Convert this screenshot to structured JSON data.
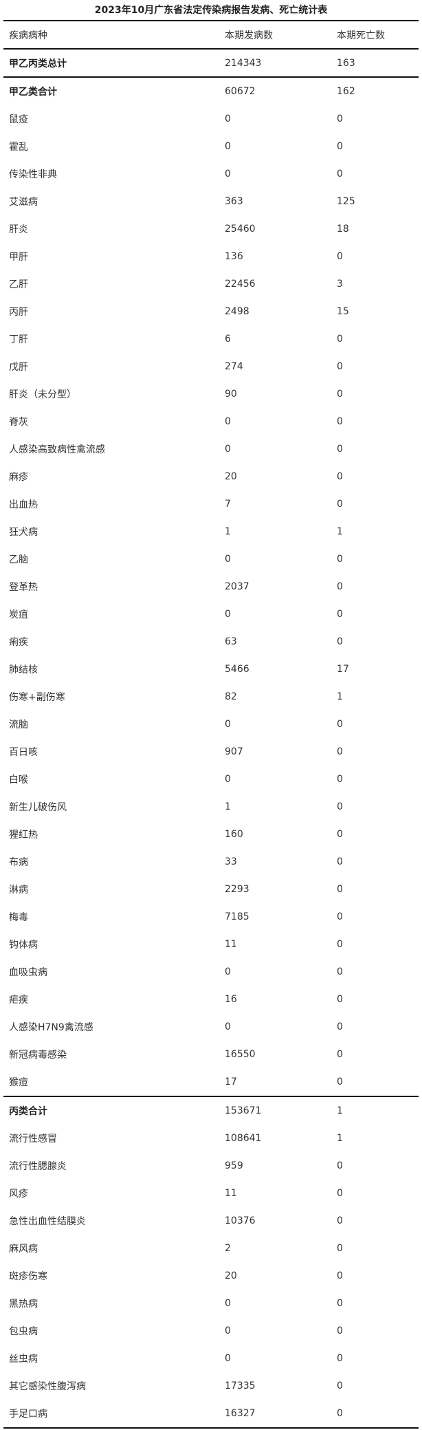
{
  "title": "2023年10月广东省法定传染病报告发病、死亡统计表",
  "columns": [
    "疾病病种",
    "本期发病数",
    "本期死亡数"
  ],
  "rows": [
    {
      "name": "甲乙丙类总计",
      "cases": "214343",
      "deaths": "163",
      "bold": true
    },
    {
      "name": "甲乙类合计",
      "cases": "60672",
      "deaths": "162",
      "bold": true
    },
    {
      "name": "鼠疫",
      "cases": "0",
      "deaths": "0"
    },
    {
      "name": "霍乱",
      "cases": "0",
      "deaths": "0"
    },
    {
      "name": "传染性非典",
      "cases": "0",
      "deaths": "0"
    },
    {
      "name": "艾滋病",
      "cases": "363",
      "deaths": "125"
    },
    {
      "name": "肝炎",
      "cases": "25460",
      "deaths": "18"
    },
    {
      "name": "甲肝",
      "cases": "136",
      "deaths": "0"
    },
    {
      "name": "乙肝",
      "cases": "22456",
      "deaths": "3"
    },
    {
      "name": "丙肝",
      "cases": "2498",
      "deaths": "15"
    },
    {
      "name": "丁肝",
      "cases": "6",
      "deaths": "0"
    },
    {
      "name": "戊肝",
      "cases": "274",
      "deaths": "0"
    },
    {
      "name": "肝炎（未分型）",
      "cases": "90",
      "deaths": "0"
    },
    {
      "name": "脊灰",
      "cases": "0",
      "deaths": "0"
    },
    {
      "name": "人感染高致病性禽流感",
      "cases": "0",
      "deaths": "0"
    },
    {
      "name": "麻疹",
      "cases": "20",
      "deaths": "0"
    },
    {
      "name": "出血热",
      "cases": "7",
      "deaths": "0"
    },
    {
      "name": "狂犬病",
      "cases": "1",
      "deaths": "1"
    },
    {
      "name": "乙脑",
      "cases": "0",
      "deaths": "0"
    },
    {
      "name": "登革热",
      "cases": "2037",
      "deaths": "0"
    },
    {
      "name": "炭疽",
      "cases": "0",
      "deaths": "0"
    },
    {
      "name": "痢疾",
      "cases": "63",
      "deaths": "0"
    },
    {
      "name": "肺结核",
      "cases": "5466",
      "deaths": "17"
    },
    {
      "name": "伤寒+副伤寒",
      "cases": "82",
      "deaths": "1"
    },
    {
      "name": "流脑",
      "cases": "0",
      "deaths": "0"
    },
    {
      "name": "百日咳",
      "cases": "907",
      "deaths": "0"
    },
    {
      "name": "白喉",
      "cases": "0",
      "deaths": "0"
    },
    {
      "name": "新生儿破伤风",
      "cases": "1",
      "deaths": "0"
    },
    {
      "name": "猩红热",
      "cases": "160",
      "deaths": "0"
    },
    {
      "name": "布病",
      "cases": "33",
      "deaths": "0"
    },
    {
      "name": "淋病",
      "cases": "2293",
      "deaths": "0"
    },
    {
      "name": "梅毒",
      "cases": "7185",
      "deaths": "0"
    },
    {
      "name": "钩体病",
      "cases": "11",
      "deaths": "0"
    },
    {
      "name": "血吸虫病",
      "cases": "0",
      "deaths": "0"
    },
    {
      "name": "疟疾",
      "cases": "16",
      "deaths": "0"
    },
    {
      "name": "人感染H7N9禽流感",
      "cases": "0",
      "deaths": "0"
    },
    {
      "name": "新冠病毒感染",
      "cases": "16550",
      "deaths": "0"
    },
    {
      "name": "猴痘",
      "cases": "17",
      "deaths": "0"
    },
    {
      "name": "丙类合计",
      "cases": "153671",
      "deaths": "1",
      "bold": true,
      "sep": true
    },
    {
      "name": "流行性感冒",
      "cases": "108641",
      "deaths": "1"
    },
    {
      "name": "流行性腮腺炎",
      "cases": "959",
      "deaths": "0"
    },
    {
      "name": "风疹",
      "cases": "11",
      "deaths": "0"
    },
    {
      "name": "急性出血性结膜炎",
      "cases": "10376",
      "deaths": "0"
    },
    {
      "name": "麻风病",
      "cases": "2",
      "deaths": "0"
    },
    {
      "name": "斑疹伤寒",
      "cases": "20",
      "deaths": "0"
    },
    {
      "name": "黑热病",
      "cases": "0",
      "deaths": "0"
    },
    {
      "name": "包虫病",
      "cases": "0",
      "deaths": "0"
    },
    {
      "name": "丝虫病",
      "cases": "0",
      "deaths": "0"
    },
    {
      "name": "其它感染性腹泻病",
      "cases": "17335",
      "deaths": "0"
    },
    {
      "name": "手足口病",
      "cases": "16327",
      "deaths": "0"
    }
  ]
}
